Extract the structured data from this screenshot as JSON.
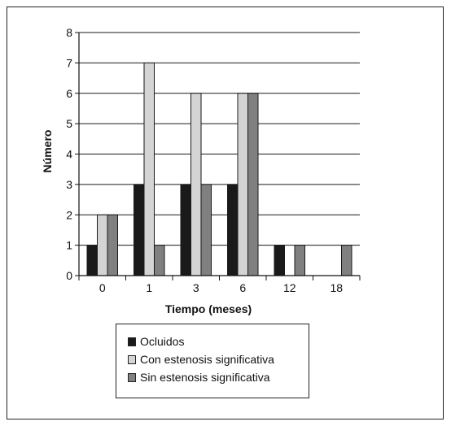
{
  "chart_data": {
    "type": "bar",
    "categories": [
      "0",
      "1",
      "3",
      "6",
      "12",
      "18"
    ],
    "series": [
      {
        "name": "Ocluidos",
        "values": [
          1,
          3,
          3,
          3,
          1,
          0
        ],
        "color": "#1a1a1a"
      },
      {
        "name": "Con estenosis significativa",
        "values": [
          2,
          7,
          6,
          6,
          0,
          0
        ],
        "color": "#d4d4d4"
      },
      {
        "name": "Sin estenosis significativa",
        "values": [
          2,
          1,
          3,
          6,
          1,
          1
        ],
        "color": "#808080"
      }
    ],
    "xlabel": "Tiempo (meses)",
    "ylabel": "Número",
    "ylim": [
      0,
      8
    ],
    "yticks": [
      "0",
      "1",
      "2",
      "3",
      "4",
      "5",
      "6",
      "7",
      "8"
    ],
    "grid": true,
    "legend_position": "bottom"
  }
}
